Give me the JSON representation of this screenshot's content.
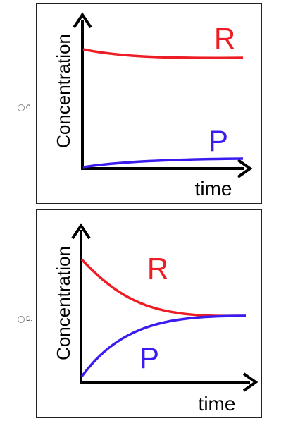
{
  "options": [
    {
      "label": "C.",
      "ylabel": "Concentration",
      "xlabel": "time",
      "series": [
        {
          "name": "R",
          "color": "#ee1c24"
        },
        {
          "name": "P",
          "color": "#3a1cf0"
        }
      ]
    },
    {
      "label": "D.",
      "ylabel": "Concentration",
      "xlabel": "time",
      "series": [
        {
          "name": "R",
          "color": "#ee1c24"
        },
        {
          "name": "P",
          "color": "#3a1cf0"
        }
      ]
    }
  ],
  "icons": {
    "radio": "radio-button-icon",
    "axis_arrow": "arrow-icon"
  }
}
